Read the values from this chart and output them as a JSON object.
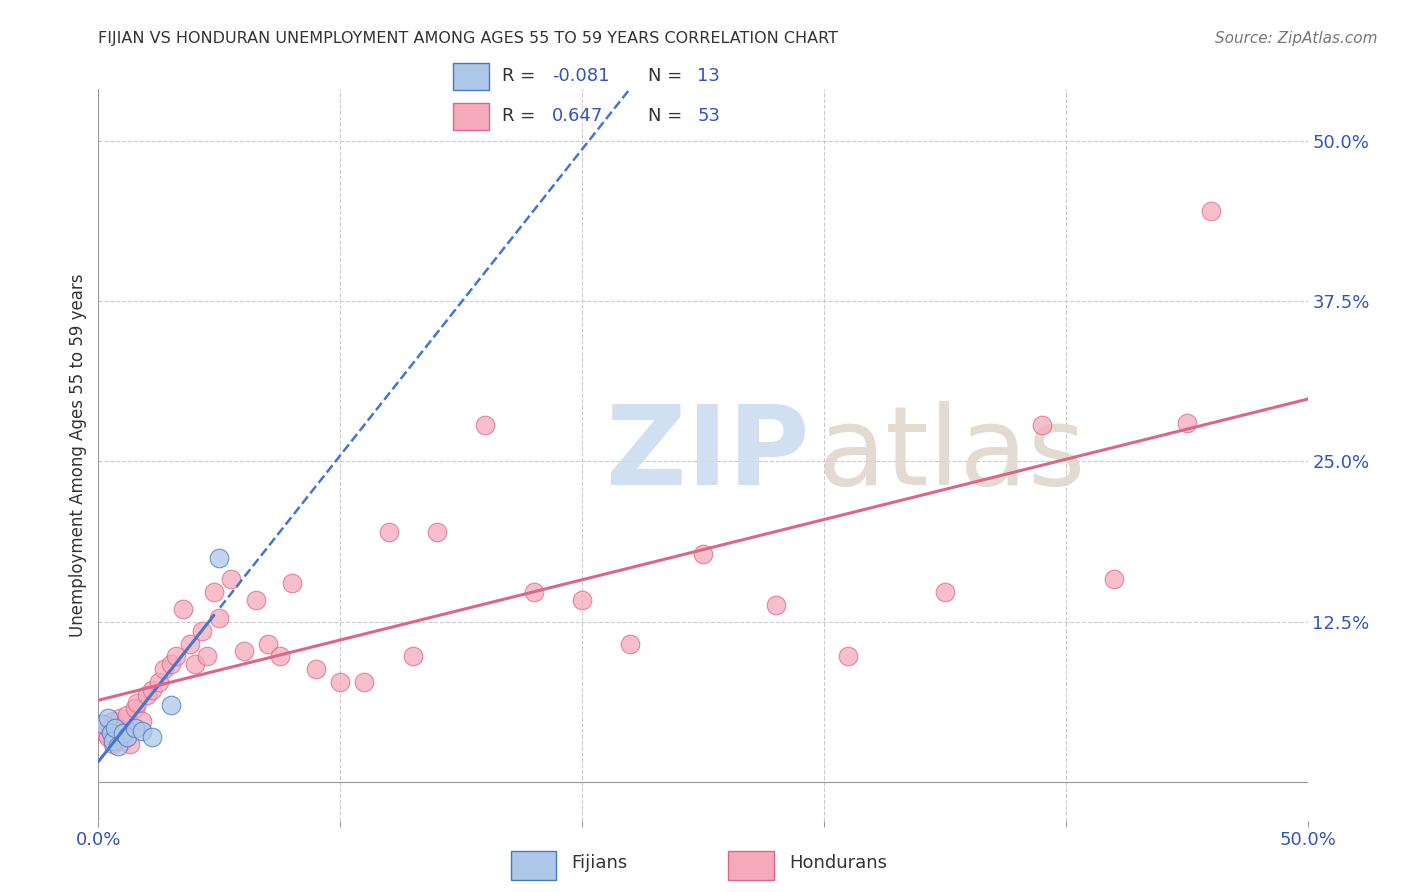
{
  "title": "FIJIAN VS HONDURAN UNEMPLOYMENT AMONG AGES 55 TO 59 YEARS CORRELATION CHART",
  "source": "Source: ZipAtlas.com",
  "ylabel": "Unemployment Among Ages 55 to 59 years",
  "xlim": [
    0.0,
    0.5
  ],
  "ylim": [
    -0.03,
    0.54
  ],
  "xticks": [
    0.0,
    0.1,
    0.2,
    0.3,
    0.4,
    0.5
  ],
  "yticks": [
    0.0,
    0.125,
    0.25,
    0.375,
    0.5
  ],
  "xticklabels": [
    "0.0%",
    "",
    "",
    "",
    "",
    "50.0%"
  ],
  "yticklabels": [
    "",
    "12.5%",
    "25.0%",
    "37.5%",
    "50.0%"
  ],
  "fijian_R": -0.081,
  "fijian_N": 13,
  "honduran_R": 0.647,
  "honduran_N": 53,
  "fijian_color": "#adc8e8",
  "honduran_color": "#f5aabc",
  "fijian_line_color": "#4477cc",
  "honduran_line_color": "#dd6688",
  "fijian_x": [
    0.002,
    0.004,
    0.005,
    0.006,
    0.007,
    0.008,
    0.01,
    0.012,
    0.015,
    0.018,
    0.022,
    0.03,
    0.05
  ],
  "fijian_y": [
    0.045,
    0.05,
    0.038,
    0.032,
    0.042,
    0.028,
    0.038,
    0.035,
    0.042,
    0.04,
    0.035,
    0.06,
    0.175
  ],
  "honduran_x": [
    0.002,
    0.003,
    0.004,
    0.005,
    0.006,
    0.006,
    0.007,
    0.008,
    0.009,
    0.01,
    0.011,
    0.012,
    0.013,
    0.015,
    0.016,
    0.018,
    0.02,
    0.022,
    0.025,
    0.027,
    0.03,
    0.032,
    0.035,
    0.038,
    0.04,
    0.043,
    0.045,
    0.048,
    0.05,
    0.055,
    0.06,
    0.065,
    0.07,
    0.075,
    0.08,
    0.09,
    0.1,
    0.11,
    0.12,
    0.13,
    0.14,
    0.16,
    0.18,
    0.2,
    0.22,
    0.25,
    0.28,
    0.31,
    0.35,
    0.39,
    0.42,
    0.45,
    0.46
  ],
  "honduran_y": [
    0.045,
    0.038,
    0.035,
    0.04,
    0.03,
    0.048,
    0.035,
    0.042,
    0.05,
    0.032,
    0.04,
    0.052,
    0.03,
    0.058,
    0.062,
    0.048,
    0.068,
    0.072,
    0.078,
    0.088,
    0.092,
    0.098,
    0.135,
    0.108,
    0.092,
    0.118,
    0.098,
    0.148,
    0.128,
    0.158,
    0.102,
    0.142,
    0.108,
    0.098,
    0.155,
    0.088,
    0.078,
    0.078,
    0.195,
    0.098,
    0.195,
    0.278,
    0.148,
    0.142,
    0.108,
    0.178,
    0.138,
    0.098,
    0.148,
    0.278,
    0.158,
    0.28,
    0.445
  ],
  "background_color": "#ffffff",
  "grid_color": "#cccccc"
}
